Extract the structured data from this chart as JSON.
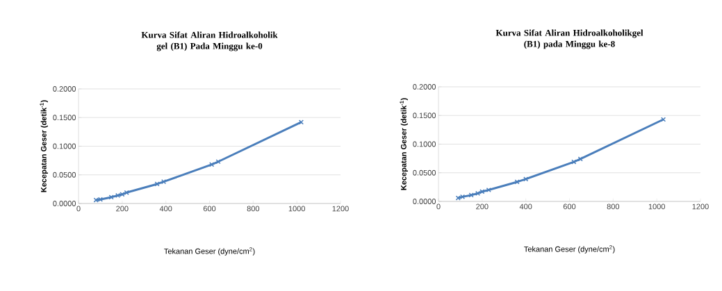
{
  "chart_data": [
    {
      "type": "line",
      "title": "Kurva Sifat Aliran Hidroalkoholik gel (B1) Pada Minggu ke-0",
      "xlabel": "Tekanan Geser (dyne/cm$^{2}$)",
      "ylabel": "Kecepatan Geser (detik$^{-1}$)",
      "x": [
        80,
        100,
        150,
        180,
        200,
        220,
        360,
        390,
        610,
        640,
        1020
      ],
      "values": [
        0.006,
        0.007,
        0.011,
        0.014,
        0.016,
        0.019,
        0.034,
        0.038,
        0.068,
        0.073,
        0.142
      ],
      "color": "#4a7ebb",
      "marker": "cross",
      "grid": "y",
      "xlim": [
        0,
        1200
      ],
      "xticks": [
        0,
        200,
        400,
        600,
        800,
        1000,
        1200
      ],
      "ylim": [
        0,
        0.2
      ],
      "yticks": [
        {
          "value": 0,
          "label": "0.0000"
        },
        {
          "value": 0.05,
          "label": "0.0500"
        },
        {
          "value": 0.1,
          "label": "0.1000"
        },
        {
          "value": 0.15,
          "label": "0.1500"
        },
        {
          "value": 0.2,
          "label": "0.2000"
        }
      ]
    },
    {
      "type": "line",
      "title": "Kurva Sifat Aliran Hidroalkoholikgel (B1) pada Minggu ke-8",
      "xlabel": "Tekanan Geser (dyne/cm$^{2}$)",
      "ylabel": "Kecepatan Geser (detik$^{-1}$)",
      "x": [
        90,
        110,
        150,
        180,
        200,
        230,
        360,
        400,
        620,
        650,
        1030
      ],
      "values": [
        0.006,
        0.008,
        0.011,
        0.014,
        0.017,
        0.02,
        0.034,
        0.039,
        0.069,
        0.074,
        0.143
      ],
      "color": "#4a7ebb",
      "marker": "cross",
      "grid": "y",
      "xlim": [
        0,
        1200
      ],
      "xticks": [
        0,
        200,
        400,
        600,
        800,
        1000,
        1200
      ],
      "ylim": [
        0,
        0.2
      ],
      "yticks": [
        {
          "value": 0,
          "label": "0.0000"
        },
        {
          "value": 0.05,
          "label": "0.0500"
        },
        {
          "value": 0.1,
          "label": "0.1000"
        },
        {
          "value": 0.15,
          "label": "0.1500"
        },
        {
          "value": 0.2,
          "label": "0.2000"
        }
      ]
    }
  ]
}
